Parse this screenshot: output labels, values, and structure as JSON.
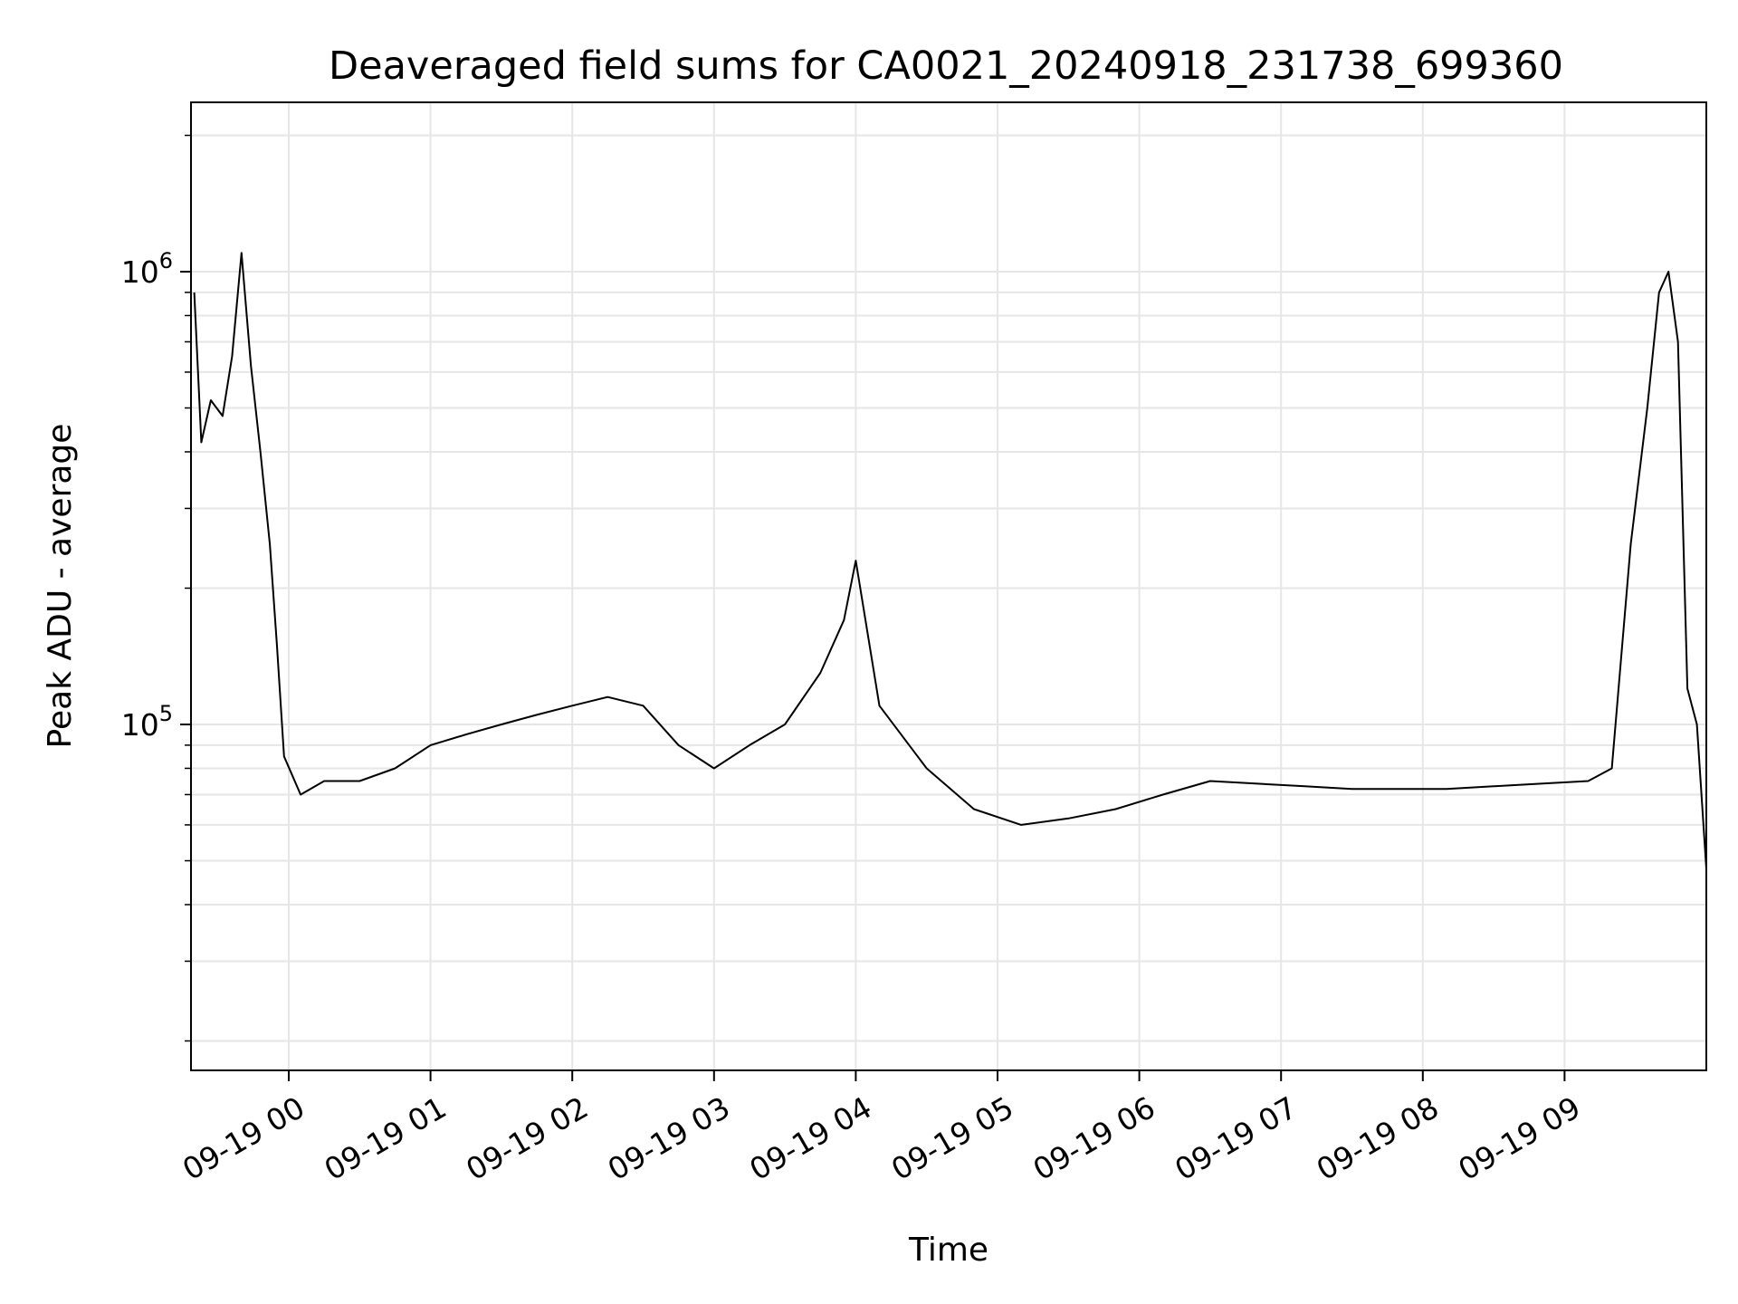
{
  "chart_data": {
    "type": "line",
    "title": "Deaveraged field sums for CA0021_20240918_231738_699360",
    "xlabel": "Time",
    "ylabel": "Peak ADU - average",
    "yscale": "log",
    "grid": true,
    "xlim": [
      "09-18 23:19",
      "09-19 10:00"
    ],
    "ylim": [
      18000,
      2300000
    ],
    "x_ticks": [
      {
        "label": "09-19 00",
        "hour": 0
      },
      {
        "label": "09-19 01",
        "hour": 1
      },
      {
        "label": "09-19 02",
        "hour": 2
      },
      {
        "label": "09-19 03",
        "hour": 3
      },
      {
        "label": "09-19 04",
        "hour": 4
      },
      {
        "label": "09-19 05",
        "hour": 5
      },
      {
        "label": "09-19 06",
        "hour": 6
      },
      {
        "label": "09-19 07",
        "hour": 7
      },
      {
        "label": "09-19 08",
        "hour": 8
      },
      {
        "label": "09-19 09",
        "hour": 9
      }
    ],
    "y_ticks": [
      {
        "value": 100000,
        "base": "10",
        "exponent": "5"
      },
      {
        "value": 1000000,
        "base": "10",
        "exponent": "6"
      }
    ],
    "series": [
      {
        "color": "#000000",
        "x": [
          "09-18 23:20",
          "09-18 23:23",
          "09-18 23:27",
          "09-18 23:32",
          "09-18 23:36",
          "09-18 23:40",
          "09-18 23:44",
          "09-18 23:48",
          "09-18 23:52",
          "09-18 23:55",
          "09-18 23:58",
          "09-19 00:05",
          "09-19 00:15",
          "09-19 00:30",
          "09-19 00:45",
          "09-19 01:00",
          "09-19 01:15",
          "09-19 01:30",
          "09-19 01:45",
          "09-19 02:00",
          "09-19 02:15",
          "09-19 02:30",
          "09-19 02:45",
          "09-19 03:00",
          "09-19 03:15",
          "09-19 03:30",
          "09-19 03:45",
          "09-19 03:55",
          "09-19 04:00",
          "09-19 04:10",
          "09-19 04:30",
          "09-19 04:50",
          "09-19 05:10",
          "09-19 05:30",
          "09-19 05:50",
          "09-19 06:10",
          "09-19 06:30",
          "09-19 06:50",
          "09-19 07:10",
          "09-19 07:30",
          "09-19 07:50",
          "09-19 08:10",
          "09-19 08:30",
          "09-19 08:50",
          "09-19 09:10",
          "09-19 09:20",
          "09-19 09:28",
          "09-19 09:35",
          "09-19 09:40",
          "09-19 09:44",
          "09-19 09:48",
          "09-19 09:52",
          "09-19 09:56",
          "09-19 10:00"
        ],
        "y": [
          900000,
          420000,
          520000,
          480000,
          650000,
          1100000,
          620000,
          400000,
          250000,
          150000,
          85000,
          70000,
          75000,
          75000,
          80000,
          90000,
          95000,
          100000,
          105000,
          110000,
          115000,
          110000,
          90000,
          80000,
          90000,
          100000,
          130000,
          170000,
          230000,
          110000,
          80000,
          65000,
          60000,
          62000,
          65000,
          70000,
          75000,
          74000,
          73000,
          72000,
          72000,
          72000,
          73000,
          74000,
          75000,
          80000,
          250000,
          500000,
          900000,
          1000000,
          700000,
          120000,
          100000,
          48000
        ]
      }
    ]
  }
}
